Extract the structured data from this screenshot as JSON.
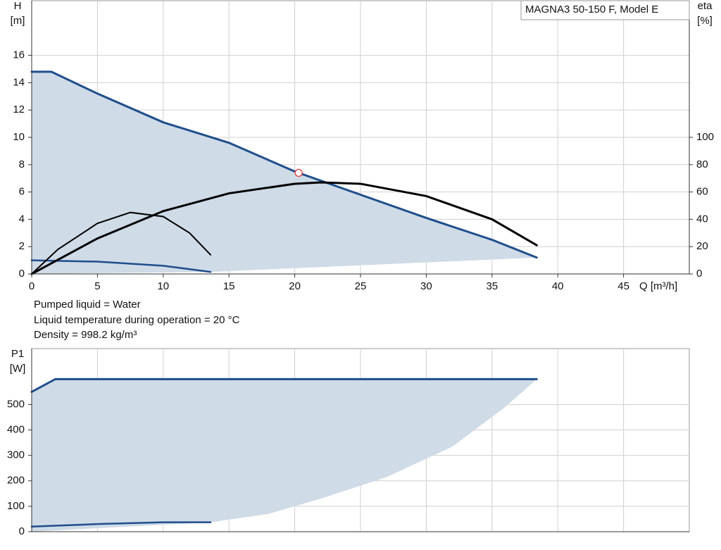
{
  "chart_data": [
    {
      "type": "line",
      "title": "MAGNA3 50-150 F, Model E",
      "ylabel": [
        "H",
        "[m]"
      ],
      "y2label": [
        "eta",
        "[%]"
      ],
      "xlabel": "Q [m³/h]",
      "xlim": [
        0,
        50
      ],
      "xticks": [
        0,
        5,
        10,
        15,
        20,
        25,
        30,
        35,
        40,
        45
      ],
      "ylim": [
        0,
        20
      ],
      "yticks": [
        0,
        2,
        4,
        6,
        8,
        10,
        12,
        14,
        16
      ],
      "y2lim": [
        0,
        200
      ],
      "y2ticks": [
        0,
        20,
        40,
        60,
        80,
        100
      ],
      "grid": true,
      "xtick_labels": true,
      "area": {
        "color": "#cfdbe7",
        "x": [
          0,
          13.6,
          38.4
        ],
        "values": [
          0,
          0.15,
          1.2
        ]
      },
      "series": [
        {
          "color": "#1f4e8c",
          "width": 3,
          "x": [
            0,
            1.5,
            5,
            10,
            15,
            20,
            25,
            30,
            35,
            38.4
          ],
          "values": [
            14.8,
            14.8,
            13.2,
            11.1,
            9.6,
            7.5,
            5.8,
            4.1,
            2.5,
            1.2
          ]
        },
        {
          "color": "#1f4e8c",
          "width": 2.5,
          "x": [
            0,
            5,
            10,
            13.6
          ],
          "values": [
            1,
            0.9,
            0.6,
            0.15
          ]
        },
        {
          "color": "#000000",
          "width": 3,
          "axis": "y2",
          "x": [
            0,
            5,
            10,
            15,
            20,
            22,
            25,
            30,
            35,
            38.4
          ],
          "values": [
            0,
            26,
            46,
            59,
            66,
            67,
            66,
            57,
            40,
            21
          ]
        },
        {
          "color": "#000000",
          "width": 2,
          "axis": "y2",
          "x": [
            0,
            2,
            5,
            7.5,
            10,
            12,
            13.6
          ],
          "values": [
            0,
            18,
            37,
            45,
            42,
            30,
            14
          ]
        }
      ],
      "points": [
        {
          "x": 20.3,
          "y": 7.4,
          "color": "#e03030"
        }
      ]
    },
    {
      "type": "line",
      "ylabel": [
        "P1",
        "[W]"
      ],
      "xlim": [
        0,
        50
      ],
      "xticks": [
        0,
        5,
        10,
        15,
        20,
        25,
        30,
        35,
        40,
        45
      ],
      "ylim": [
        0,
        720
      ],
      "yticks": [
        0,
        100,
        200,
        300,
        400,
        500
      ],
      "grid": true,
      "xtick_labels": false,
      "area": {
        "color": "#cfdbe7",
        "x": [
          0,
          13.6,
          18,
          22,
          27,
          32,
          36,
          38.4
        ],
        "values": [
          0,
          37,
          70,
          130,
          215,
          335,
          490,
          600
        ]
      },
      "series": [
        {
          "color": "#1f4e8c",
          "width": 3,
          "x": [
            0,
            1.8,
            38.4
          ],
          "values": [
            550,
            600,
            600
          ]
        },
        {
          "color": "#1f4e8c",
          "width": 2.5,
          "x": [
            0,
            5,
            10,
            13.6
          ],
          "values": [
            20,
            30,
            37,
            37
          ]
        }
      ]
    }
  ],
  "notes": [
    "Pumped liquid = Water",
    "Liquid temperature during operation = 20 °C",
    "Density = 998.2 kg/m³"
  ]
}
